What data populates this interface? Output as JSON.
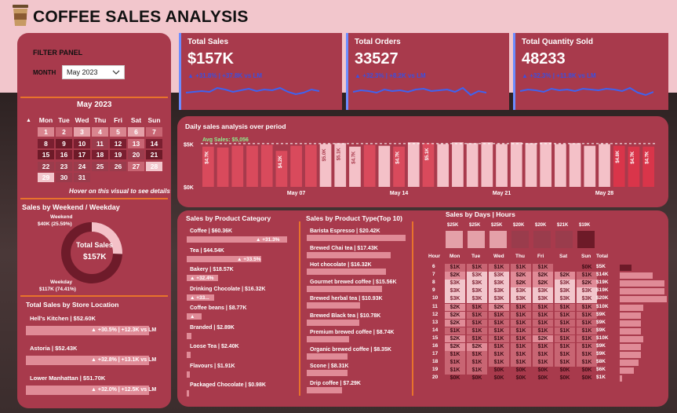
{
  "app": {
    "title": "COFFEE SALES ANALYSIS"
  },
  "filter": {
    "heading": "FILTER PANEL",
    "month_label": "MONTH",
    "month_value": "May 2023"
  },
  "calendar": {
    "title": "May 2023",
    "days": [
      "Mon",
      "Tue",
      "Wed",
      "Thu",
      "Fri",
      "Sat",
      "Sun"
    ],
    "rows": [
      [
        "1",
        "2",
        "3",
        "4",
        "5",
        "6",
        "7"
      ],
      [
        "8",
        "9",
        "10",
        "11",
        "12",
        "13",
        "14"
      ],
      [
        "15",
        "16",
        "17",
        "18",
        "19",
        "20",
        "21"
      ],
      [
        "22",
        "23",
        "24",
        "25",
        "26",
        "27",
        "28"
      ],
      [
        "29",
        "30",
        "31",
        "",
        "",
        "",
        ""
      ]
    ],
    "hint": "Hover on this visual to see details"
  },
  "weekend": {
    "title": "Sales by Weekend / Weekday",
    "weekend_label": "Weekend",
    "weekend_value": "$40K (25.59%)",
    "weekday_label": "Weekday",
    "weekday_value": "$117K (74.41%)",
    "center_label": "Total Sales",
    "center_value": "$157K",
    "weekend_share": 25.59
  },
  "store": {
    "title": "Total Sales by Store Location",
    "items": [
      {
        "name": "Hell's Kitchen | $52.60K",
        "chg": "▲ +30.5% | +12.3K vs LM"
      },
      {
        "name": "Astoria | $52.43K",
        "chg": "▲ +32.8% | +13.1K vs LM"
      },
      {
        "name": "Lower Manhattan | $51.70K",
        "chg": "▲ +32.0% | +12.5K vs LM"
      }
    ]
  },
  "kpis": [
    {
      "title": "Total Sales",
      "value": "$157K",
      "change": "▲ +31.8% | +37.8K vs LM"
    },
    {
      "title": "Total Orders",
      "value": "33527",
      "change": "▲ +32.3% | +8.2K vs LM"
    },
    {
      "title": "Total Quantity Sold",
      "value": "48233",
      "change": "▲ +32.3% | +11.8K vs LM"
    }
  ],
  "daily": {
    "title": "Daily sales analysis over period",
    "avg_label": "Avg Sales: $5,056",
    "y_labels": [
      "$5K",
      "$0K"
    ],
    "x_labels": [
      "May 07",
      "May 14",
      "May 21",
      "May 28"
    ],
    "bar_labels": {
      "b1": "$4.7K",
      "b6": "$4.2K",
      "b9": "$5.0K",
      "b10": "$5.1K",
      "b11": "$4.7K",
      "b14": "$4.7K",
      "b16": "$5.1K",
      "b29": "$4.8K",
      "b30": "$4.7K",
      "b31": "$4.7K"
    }
  },
  "chart_data": {
    "type": "bar",
    "title": "Daily sales analysis over period",
    "x": [
      "May 01",
      "May 02",
      "May 03",
      "May 04",
      "May 05",
      "May 06",
      "May 07",
      "May 08",
      "May 09",
      "May 10",
      "May 11",
      "May 12",
      "May 13",
      "May 14",
      "May 15",
      "May 16",
      "May 17",
      "May 18",
      "May 19",
      "May 20",
      "May 21",
      "May 22",
      "May 23",
      "May 24",
      "May 25",
      "May 26",
      "May 27",
      "May 28",
      "May 29",
      "May 30",
      "May 31"
    ],
    "values": [
      4.7,
      4.6,
      4.8,
      4.8,
      4.9,
      4.2,
      4.8,
      4.9,
      5.0,
      5.1,
      4.7,
      4.9,
      4.8,
      4.7,
      5.2,
      5.1,
      5.0,
      5.2,
      5.1,
      5.2,
      5.0,
      5.2,
      5.1,
      5.2,
      5.0,
      5.1,
      4.8,
      5.0,
      4.8,
      4.7,
      4.7
    ],
    "average": 5.056,
    "ylim": [
      0,
      5.5
    ],
    "ylabel": "",
    "xlabel": ""
  },
  "category": {
    "title": "Sales by Product Category",
    "items": [
      {
        "label": "Coffee | $60.36K",
        "chg": "▲ +31.3%",
        "share": 1.0
      },
      {
        "label": "Tea | $44.54K",
        "chg": "▲ +33.5%",
        "share": 0.74
      },
      {
        "label": "Bakery | $18.57K",
        "chg": "▲ +32.4%",
        "share": 0.31
      },
      {
        "label": "Drinking Chocolate | $16.32K",
        "chg": "▲ +33...",
        "share": 0.27
      },
      {
        "label": "Coffee beans | $8.77K",
        "chg": "▲",
        "share": 0.15
      },
      {
        "label": "Branded | $2.89K",
        "chg": "",
        "share": 0.05
      },
      {
        "label": "Loose Tea | $2.40K",
        "chg": "",
        "share": 0.04
      },
      {
        "label": "Flavours | $1.91K",
        "chg": "",
        "share": 0.03
      },
      {
        "label": "Packaged Chocolate | $0.98K",
        "chg": "",
        "share": 0.02
      }
    ]
  },
  "ptype": {
    "title": "Sales by Product Type(Top 10)",
    "items": [
      {
        "label": "Barista Espresso | $20.42K",
        "share": 1.0
      },
      {
        "label": "Brewed Chai tea | $17.43K",
        "share": 0.85
      },
      {
        "label": "Hot chocolate | $16.32K",
        "share": 0.8
      },
      {
        "label": "Gourmet brewed coffee | $15.56K",
        "share": 0.76
      },
      {
        "label": "Brewed herbal tea | $10.93K",
        "share": 0.54
      },
      {
        "label": "Brewed Black tea | $10.78K",
        "share": 0.53
      },
      {
        "label": "Premium brewed coffee | $8.74K",
        "share": 0.43
      },
      {
        "label": "Organic brewed coffee | $8.35K",
        "share": 0.41
      },
      {
        "label": "Scone | $8.31K",
        "share": 0.41
      },
      {
        "label": "Drip coffee | $7.29K",
        "share": 0.36
      }
    ]
  },
  "heatmap": {
    "title": "Sales by Days | Hours",
    "day_totals": [
      "$25K",
      "$25K",
      "$25K",
      "$20K",
      "$20K",
      "$21K",
      "$19K"
    ],
    "hour_label": "Hour",
    "total_label": "Total",
    "days": [
      "Mon",
      "Tue",
      "Wed",
      "Thu",
      "Fri",
      "Sat",
      "Sun"
    ],
    "hours": [
      "6",
      "7",
      "8",
      "9",
      "10",
      "11",
      "12",
      "13",
      "14",
      "15",
      "16",
      "17",
      "18",
      "19",
      "20"
    ],
    "cells": [
      [
        "$1K",
        "$1K",
        "$1K",
        "$1K",
        "$1K",
        "",
        "$0K"
      ],
      [
        "$2K",
        "$3K",
        "$3K",
        "$2K",
        "$2K",
        "$2K",
        "$1K"
      ],
      [
        "$3K",
        "$3K",
        "$3K",
        "$2K",
        "$2K",
        "$3K",
        "$2K"
      ],
      [
        "$3K",
        "$3K",
        "$3K",
        "$3K",
        "$3K",
        "$3K",
        "$3K"
      ],
      [
        "$3K",
        "$3K",
        "$3K",
        "$3K",
        "$3K",
        "$3K",
        "$3K"
      ],
      [
        "$2K",
        "$1K",
        "$2K",
        "$1K",
        "$1K",
        "$1K",
        "$1K"
      ],
      [
        "$2K",
        "$1K",
        "$1K",
        "$1K",
        "$1K",
        "$1K",
        "$1K"
      ],
      [
        "$2K",
        "$1K",
        "$1K",
        "$1K",
        "$1K",
        "$1K",
        "$1K"
      ],
      [
        "$1K",
        "$1K",
        "$1K",
        "$1K",
        "$1K",
        "$1K",
        "$1K"
      ],
      [
        "$2K",
        "$1K",
        "$1K",
        "$1K",
        "$2K",
        "$1K",
        "$1K"
      ],
      [
        "$2K",
        "$2K",
        "$1K",
        "$1K",
        "$1K",
        "$1K",
        "$1K"
      ],
      [
        "$1K",
        "$1K",
        "$1K",
        "$1K",
        "$1K",
        "$1K",
        "$1K"
      ],
      [
        "$1K",
        "$1K",
        "$1K",
        "$1K",
        "$1K",
        "$1K",
        "$1K"
      ],
      [
        "$1K",
        "$1K",
        "$0K",
        "$0K",
        "$0K",
        "$0K",
        "$0K"
      ],
      [
        "$0K",
        "$0K",
        "$0K",
        "$0K",
        "$0K",
        "$0K",
        "$0K"
      ]
    ],
    "totals": [
      "$5K",
      "$14K",
      "$19K",
      "$19K",
      "$20K",
      "$10K",
      "$9K",
      "$9K",
      "$9K",
      "$10K",
      "$9K",
      "$9K",
      "$8K",
      "$6K",
      "$1K"
    ],
    "total_values": [
      5,
      14,
      19,
      19,
      20,
      10,
      9,
      9,
      9,
      10,
      9,
      9,
      8,
      6,
      1
    ]
  }
}
